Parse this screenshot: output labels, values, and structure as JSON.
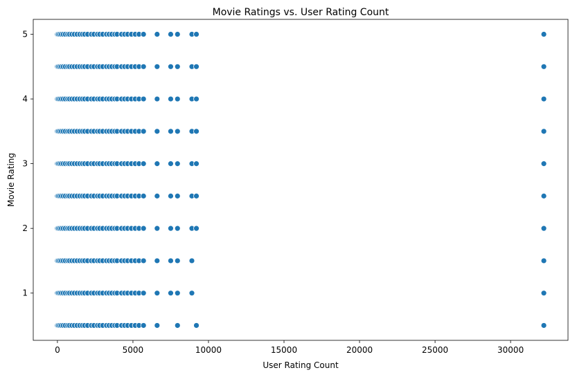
{
  "chart_data": {
    "type": "scatter",
    "title": "Movie Ratings vs. User Rating Count",
    "xlabel": "User Rating Count",
    "ylabel": "Movie Rating",
    "xlim": [
      -1600,
      33800
    ],
    "ylim": [
      0.27,
      5.23
    ],
    "xticks": [
      0,
      5000,
      10000,
      15000,
      20000,
      25000,
      30000
    ],
    "yticks": [
      1,
      2,
      3,
      4,
      5
    ],
    "grid": false,
    "legend": "none",
    "point_color": "#1f77b4",
    "rating_levels": [
      0.5,
      1.0,
      1.5,
      2.0,
      2.5,
      3.0,
      3.5,
      4.0,
      4.5,
      5.0
    ],
    "user_rating_counts": [
      0,
      60,
      150,
      260,
      380,
      520,
      680,
      800,
      960,
      1120,
      1300,
      1480,
      1650,
      1800,
      2000,
      2250,
      2420,
      2650,
      2800,
      3000,
      3250,
      3420,
      3600,
      3800,
      3950,
      4250,
      4450,
      4650,
      4900,
      5150,
      5400,
      5700,
      6600,
      7500,
      7950,
      8900,
      9200,
      32200
    ],
    "missing_points": [
      {
        "x": 9200,
        "y": 1.0
      },
      {
        "x": 9200,
        "y": 1.5
      },
      {
        "x": 8900,
        "y": 0.5
      },
      {
        "x": 7500,
        "y": 0.5
      }
    ]
  }
}
